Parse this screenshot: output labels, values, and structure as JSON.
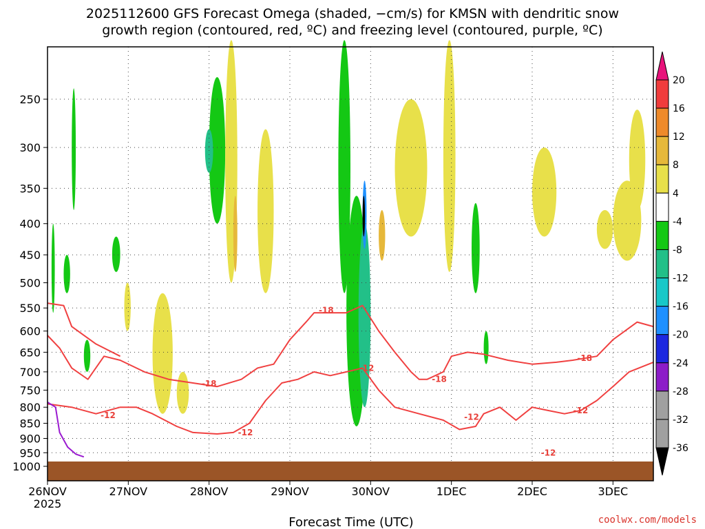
{
  "chart_data": {
    "type": "heatmap",
    "title_line1": "2025112600 GFS Forecast Omega (shaded, −cm/s) for KMSN with dendritic snow",
    "title_line2": "growth region (contoured, red, ºC) and freezing level (contoured, purple, ºC)",
    "xlabel": "Forecast Time (UTC)",
    "ylabel": "",
    "credit": "coolwx.com/models",
    "x_ticks": [
      {
        "label": "26NOV",
        "day": 0,
        "sub": "2025"
      },
      {
        "label": "27NOV",
        "day": 1
      },
      {
        "label": "28NOV",
        "day": 2
      },
      {
        "label": "29NOV",
        "day": 3
      },
      {
        "label": "30NOV",
        "day": 4
      },
      {
        "label": "1DEC",
        "day": 5
      },
      {
        "label": "2DEC",
        "day": 6
      },
      {
        "label": "3DEC",
        "day": 7
      }
    ],
    "x_range_days": [
      0,
      7.5
    ],
    "y_ticks": [
      "250",
      "300",
      "350",
      "400",
      "450",
      "500",
      "550",
      "600",
      "650",
      "700",
      "750",
      "800",
      "850",
      "900",
      "950",
      "1000"
    ],
    "y_tick_values": [
      250,
      300,
      350,
      400,
      450,
      500,
      550,
      600,
      650,
      700,
      750,
      800,
      850,
      900,
      950,
      1000
    ],
    "y_range_hpa": [
      200,
      1020
    ],
    "colorbar": {
      "labels": [
        "20",
        "16",
        "12",
        "8",
        "4",
        "-4",
        "-8",
        "-12",
        "-16",
        "-20",
        "-24",
        "-28",
        "-32",
        "-36"
      ],
      "colors": [
        "#e8137b",
        "#f03c3c",
        "#ee8a2a",
        "#e6b83a",
        "#e8e04a",
        "#ffffff",
        "#14c814",
        "#22c088",
        "#18c8c8",
        "#1e90ff",
        "#1c28e0",
        "#8c1cc8",
        "#a0a0a0",
        "#000000"
      ]
    },
    "contour_labels": [
      "-18",
      "-18",
      "-18",
      "-18",
      "-12",
      "-12",
      "-12",
      "-12",
      "-12",
      "-12"
    ],
    "series": [
      {
        "name": "dendritic -18C (lower)",
        "color": "#f04040",
        "points": [
          [
            0.0,
            610
          ],
          [
            0.15,
            640
          ],
          [
            0.3,
            690
          ],
          [
            0.5,
            720
          ],
          [
            0.7,
            660
          ],
          [
            0.9,
            670
          ],
          [
            1.2,
            700
          ],
          [
            1.5,
            720
          ],
          [
            1.8,
            730
          ],
          [
            2.1,
            740
          ],
          [
            2.4,
            720
          ],
          [
            2.6,
            690
          ],
          [
            2.8,
            680
          ],
          [
            3.0,
            620
          ],
          [
            3.2,
            580
          ],
          [
            3.3,
            560
          ],
          [
            3.5,
            560
          ],
          [
            3.7,
            560
          ],
          [
            3.9,
            545
          ],
          [
            4.1,
            600
          ],
          [
            4.3,
            650
          ],
          [
            4.5,
            700
          ],
          [
            4.6,
            720
          ],
          [
            4.7,
            720
          ],
          [
            4.9,
            700
          ],
          [
            5.0,
            660
          ],
          [
            5.2,
            650
          ],
          [
            5.4,
            655
          ],
          [
            5.7,
            670
          ],
          [
            6.0,
            680
          ],
          [
            6.3,
            675
          ],
          [
            6.5,
            670
          ],
          [
            6.8,
            660
          ],
          [
            7.0,
            620
          ],
          [
            7.3,
            580
          ],
          [
            7.5,
            590
          ]
        ]
      },
      {
        "name": "dendritic -18C (upper)",
        "color": "#f04040",
        "points": [
          [
            0.0,
            540
          ],
          [
            0.2,
            545
          ],
          [
            0.3,
            590
          ],
          [
            0.6,
            630
          ],
          [
            0.9,
            660
          ]
        ]
      },
      {
        "name": "dendritic -12C",
        "color": "#f04040",
        "points": [
          [
            0.0,
            790
          ],
          [
            0.3,
            800
          ],
          [
            0.6,
            820
          ],
          [
            0.9,
            800
          ],
          [
            1.1,
            800
          ],
          [
            1.3,
            820
          ],
          [
            1.6,
            860
          ],
          [
            1.8,
            880
          ],
          [
            2.1,
            885
          ],
          [
            2.3,
            880
          ],
          [
            2.5,
            850
          ],
          [
            2.7,
            780
          ],
          [
            2.9,
            730
          ],
          [
            3.1,
            720
          ],
          [
            3.3,
            700
          ],
          [
            3.5,
            710
          ],
          [
            3.7,
            700
          ],
          [
            3.9,
            690
          ],
          [
            4.1,
            750
          ],
          [
            4.3,
            800
          ],
          [
            4.6,
            820
          ],
          [
            4.9,
            840
          ],
          [
            5.1,
            870
          ],
          [
            5.3,
            860
          ],
          [
            5.4,
            820
          ],
          [
            5.6,
            800
          ],
          [
            5.8,
            840
          ],
          [
            6.0,
            800
          ],
          [
            6.2,
            810
          ],
          [
            6.4,
            820
          ],
          [
            6.6,
            810
          ],
          [
            6.8,
            780
          ],
          [
            7.0,
            740
          ],
          [
            7.2,
            700
          ],
          [
            7.5,
            675
          ]
        ]
      },
      {
        "name": "freezing level 0C",
        "color": "#9a1ad0",
        "points": [
          [
            0.0,
            785
          ],
          [
            0.1,
            800
          ],
          [
            0.15,
            880
          ],
          [
            0.25,
            930
          ],
          [
            0.35,
            955
          ],
          [
            0.45,
            965
          ]
        ]
      }
    ]
  }
}
